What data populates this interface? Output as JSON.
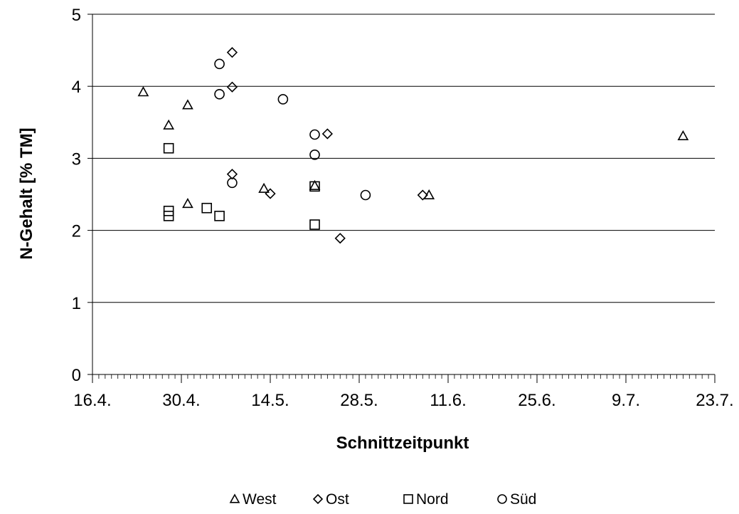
{
  "chart_data": {
    "type": "scatter",
    "title": "",
    "xlabel": "Schnittzeitpunkt",
    "ylabel": "N-Gehalt [% TM]",
    "x_ticks": [
      "16.4.",
      "30.4.",
      "14.5.",
      "28.5.",
      "11.6.",
      "25.6.",
      "9.7.",
      "23.7."
    ],
    "xlim": [
      "16.4.",
      "23.7."
    ],
    "ylim": [
      0,
      5
    ],
    "y_ticks": [
      0,
      1,
      2,
      3,
      4,
      5
    ],
    "grid": "horizontal",
    "legend_position": "bottom",
    "series": [
      {
        "name": "West",
        "marker": "triangle",
        "points": [
          {
            "x": "24.4.",
            "y": 3.92
          },
          {
            "x": "28.4.",
            "y": 3.46
          },
          {
            "x": "1.5.",
            "y": 3.74
          },
          {
            "x": "1.5.",
            "y": 2.37
          },
          {
            "x": "13.5.",
            "y": 2.58
          },
          {
            "x": "21.5.",
            "y": 2.62
          },
          {
            "x": "8.6.",
            "y": 2.49
          },
          {
            "x": "18.7.",
            "y": 3.31
          }
        ]
      },
      {
        "name": "Ost",
        "marker": "diamond",
        "points": [
          {
            "x": "8.5.",
            "y": 4.47
          },
          {
            "x": "8.5.",
            "y": 3.99
          },
          {
            "x": "8.5.",
            "y": 2.78
          },
          {
            "x": "14.5.",
            "y": 2.51
          },
          {
            "x": "23.5.",
            "y": 3.34
          },
          {
            "x": "25.5.",
            "y": 1.89
          },
          {
            "x": "7.6.",
            "y": 2.49
          }
        ]
      },
      {
        "name": "Nord",
        "marker": "square",
        "points": [
          {
            "x": "28.4.",
            "y": 3.14
          },
          {
            "x": "28.4.",
            "y": 2.27
          },
          {
            "x": "28.4.",
            "y": 2.2
          },
          {
            "x": "4.5.",
            "y": 2.31
          },
          {
            "x": "6.5.",
            "y": 2.2
          },
          {
            "x": "21.5.",
            "y": 2.61
          },
          {
            "x": "21.5.",
            "y": 2.08
          }
        ]
      },
      {
        "name": "Süd",
        "marker": "circle",
        "points": [
          {
            "x": "6.5.",
            "y": 4.31
          },
          {
            "x": "6.5.",
            "y": 3.89
          },
          {
            "x": "8.5.",
            "y": 2.66
          },
          {
            "x": "16.5.",
            "y": 3.82
          },
          {
            "x": "21.5.",
            "y": 3.33
          },
          {
            "x": "21.5.",
            "y": 3.05
          },
          {
            "x": "29.5.",
            "y": 2.49
          }
        ]
      }
    ]
  }
}
